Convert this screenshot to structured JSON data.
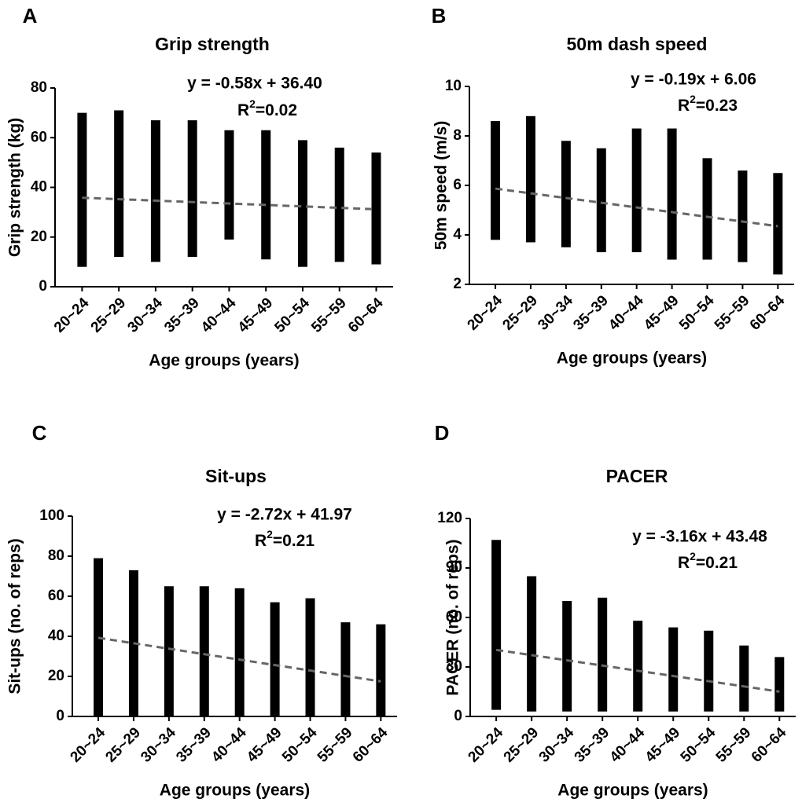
{
  "chart_data": [
    {
      "type": "strip",
      "panel_label": "A",
      "title": "Grip strength",
      "x_label": "Age groups (years)",
      "y_label": "Grip strength (kg)",
      "categories": [
        "20~24",
        "25~29",
        "30~34",
        "35~39",
        "40~44",
        "45~49",
        "50~54",
        "55~59",
        "60~64"
      ],
      "low": [
        8,
        12,
        10,
        12,
        19,
        11,
        8,
        10,
        9
      ],
      "high": [
        70,
        71,
        67,
        67,
        63,
        63,
        59,
        56,
        54
      ],
      "ylim": [
        0,
        80
      ],
      "yticks": [
        0,
        20,
        40,
        60,
        80
      ],
      "color": "#000000",
      "trend": {
        "slope": -0.58,
        "intercept": 36.4,
        "label": "y = -0.58x + 36.40",
        "color": "#666666",
        "r2_base": "R",
        "r2_sup": "2",
        "r2_rest": "=0.02"
      }
    },
    {
      "type": "strip",
      "panel_label": "B",
      "title": "50m dash speed",
      "x_label": "Age groups (years)",
      "y_label": "50m speed (m/s)",
      "categories": [
        "20~24",
        "25~29",
        "30~34",
        "35~39",
        "40~44",
        "45~49",
        "50~54",
        "55~59",
        "60~64"
      ],
      "low": [
        3.8,
        3.7,
        3.5,
        3.3,
        3.3,
        3.0,
        3.0,
        2.9,
        2.4
      ],
      "high": [
        8.6,
        8.8,
        7.8,
        7.5,
        8.3,
        8.3,
        7.1,
        6.6,
        6.5
      ],
      "ylim": [
        2,
        10
      ],
      "yticks": [
        2,
        4,
        6,
        8,
        10
      ],
      "color": "#000000",
      "trend": {
        "slope": -0.19,
        "intercept": 6.06,
        "label": "y = -0.19x + 6.06",
        "color": "#666666",
        "r2_base": "R",
        "r2_sup": "2",
        "r2_rest": "=0.23"
      }
    },
    {
      "type": "strip",
      "panel_label": "C",
      "title": "Sit-ups",
      "x_label": "Age groups (years)",
      "y_label": "Sit-ups (no. of reps)",
      "categories": [
        "20~24",
        "25~29",
        "30~34",
        "35~39",
        "40~44",
        "45~49",
        "50~54",
        "55~59",
        "60~64"
      ],
      "low": [
        0,
        0,
        0,
        0,
        0,
        0,
        0,
        0,
        0
      ],
      "high": [
        79,
        73,
        65,
        65,
        64,
        57,
        59,
        47,
        46
      ],
      "ylim": [
        0,
        100
      ],
      "yticks": [
        0,
        20,
        40,
        60,
        80,
        100
      ],
      "color": "#000000",
      "trend": {
        "slope": -2.72,
        "intercept": 41.97,
        "label": "y = -2.72x + 41.97",
        "color": "#666666",
        "r2_base": "R",
        "r2_sup": "2",
        "r2_rest": "=0.21"
      }
    },
    {
      "type": "strip",
      "panel_label": "D",
      "title": "PACER",
      "x_label": "Age groups (years)",
      "y_label": "PACER (no. of reps)",
      "categories": [
        "20~24",
        "25~29",
        "30~34",
        "35~39",
        "40~44",
        "45~49",
        "50~54",
        "55~59",
        "60~64"
      ],
      "low": [
        4,
        3,
        3,
        3,
        3,
        3,
        3,
        3,
        3
      ],
      "high": [
        107,
        85,
        70,
        72,
        58,
        54,
        52,
        43,
        36
      ],
      "ylim": [
        0,
        120
      ],
      "yticks": [
        0,
        30,
        60,
        90,
        120
      ],
      "color": "#000000",
      "trend": {
        "slope": -3.16,
        "intercept": 43.48,
        "label": "y = -3.16x + 43.48",
        "color": "#666666",
        "r2_base": "R",
        "r2_sup": "2",
        "r2_rest": "=0.21"
      }
    }
  ]
}
